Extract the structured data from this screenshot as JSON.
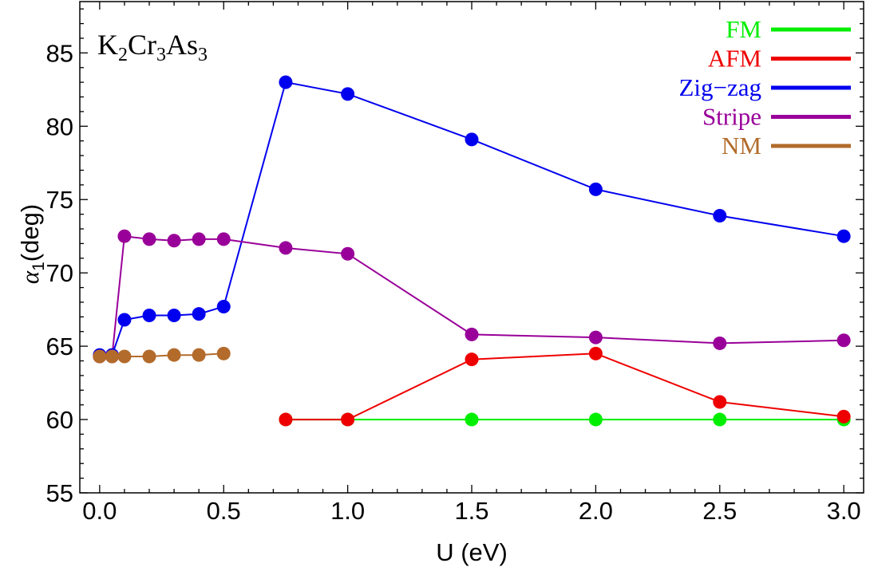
{
  "chart_data": {
    "type": "line",
    "panel_label": {
      "base1": "K",
      "sub1": "2",
      "base2": "Cr",
      "sub2": "3",
      "base3": "As",
      "sub3": "3"
    },
    "xlabel": "U (eV)",
    "ylabel": {
      "greek": "α",
      "sub": "1",
      "rest": "(deg)"
    },
    "xlim": [
      -0.08,
      3.08
    ],
    "ylim": [
      55,
      88.5
    ],
    "xticks": [
      "0.0",
      "0.5",
      "1.0",
      "1.5",
      "2.0",
      "2.5",
      "3.0"
    ],
    "yticks": [
      "55",
      "60",
      "65",
      "70",
      "75",
      "80",
      "85"
    ],
    "grid": false,
    "legend_position": "top-right",
    "series": [
      {
        "name": "FM",
        "color": "#00ee00",
        "x": [
          0.75,
          1.0,
          1.5,
          2.0,
          2.5,
          3.0
        ],
        "y": [
          60.0,
          60.0,
          60.0,
          60.0,
          60.0,
          60.0
        ]
      },
      {
        "name": "AFM",
        "color": "#ee0000",
        "x": [
          0.75,
          1.0,
          1.5,
          2.0,
          2.5,
          3.0
        ],
        "y": [
          60.0,
          60.0,
          64.1,
          64.5,
          61.2,
          60.2
        ]
      },
      {
        "name": "Zig−zag",
        "color": "#0000ee",
        "x": [
          0.0,
          0.05,
          0.1,
          0.2,
          0.3,
          0.4,
          0.5,
          0.75,
          1.0,
          1.5,
          2.0,
          2.5,
          3.0
        ],
        "y": [
          64.4,
          64.4,
          66.8,
          67.1,
          67.1,
          67.2,
          67.7,
          83.0,
          82.2,
          79.1,
          75.7,
          73.9,
          72.5
        ]
      },
      {
        "name": "Stripe",
        "color": "#990099",
        "x": [
          0.0,
          0.05,
          0.1,
          0.2,
          0.3,
          0.4,
          0.5,
          0.75,
          1.0,
          1.5,
          2.0,
          2.5,
          3.0
        ],
        "y": [
          64.3,
          64.3,
          72.5,
          72.3,
          72.2,
          72.3,
          72.3,
          71.7,
          71.3,
          65.8,
          65.6,
          65.2,
          65.4
        ]
      },
      {
        "name": "NM",
        "color": "#b36b2b",
        "x": [
          0.0,
          0.05,
          0.1,
          0.2,
          0.3,
          0.4,
          0.5
        ],
        "y": [
          64.3,
          64.3,
          64.3,
          64.3,
          64.4,
          64.4,
          64.5
        ]
      }
    ]
  }
}
